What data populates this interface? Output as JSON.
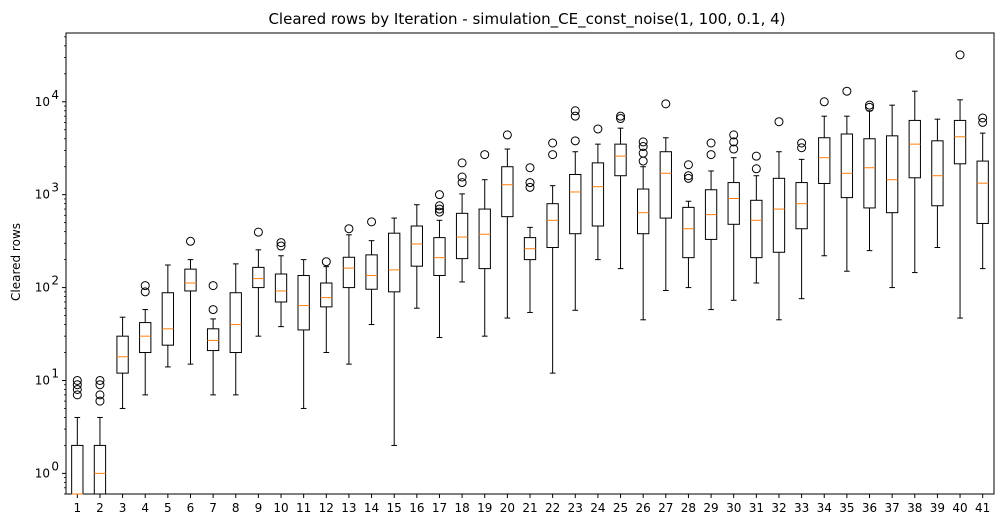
{
  "chart_data": {
    "type": "box",
    "title": "Cleared rows by Iteration - simulation_CE_const_noise(1, 100, 0.1, 4)",
    "xlabel": "",
    "ylabel": "Cleared rows",
    "yscale": "log",
    "ylim": [
      0.6,
      55000
    ],
    "yticks": [
      {
        "value": 1,
        "mantissa": "10",
        "exp": "0"
      },
      {
        "value": 10,
        "mantissa": "10",
        "exp": "1"
      },
      {
        "value": 100,
        "mantissa": "10",
        "exp": "2"
      },
      {
        "value": 1000,
        "mantissa": "10",
        "exp": "3"
      },
      {
        "value": 10000,
        "mantissa": "10",
        "exp": "4"
      }
    ],
    "grid": false,
    "colors": {
      "box": "#000000",
      "median": "#ff7f0e",
      "flier": "#000000"
    },
    "categories": [
      "1",
      "2",
      "3",
      "4",
      "5",
      "6",
      "7",
      "8",
      "9",
      "10",
      "11",
      "12",
      "13",
      "14",
      "15",
      "16",
      "17",
      "18",
      "19",
      "20",
      "21",
      "22",
      "23",
      "24",
      "25",
      "26",
      "27",
      "28",
      "29",
      "30",
      "31",
      "32",
      "33",
      "34",
      "35",
      "36",
      "37",
      "38",
      "39",
      "40",
      "41"
    ],
    "boxes": [
      {
        "label": "1",
        "min": 0.6,
        "q1": 0.6,
        "median": 0.6,
        "q3": 2,
        "max": 4,
        "outliers": [
          7,
          8,
          9,
          10
        ]
      },
      {
        "label": "2",
        "min": 0.6,
        "q1": 0.6,
        "median": 1,
        "q3": 2,
        "max": 4,
        "outliers": [
          6,
          7,
          9,
          10
        ]
      },
      {
        "label": "3",
        "min": 5,
        "q1": 12,
        "median": 18,
        "q3": 30,
        "max": 48,
        "outliers": []
      },
      {
        "label": "4",
        "min": 7,
        "q1": 20,
        "median": 30,
        "q3": 42,
        "max": 58,
        "outliers": [
          90,
          105
        ]
      },
      {
        "label": "5",
        "min": 14,
        "q1": 24,
        "median": 36,
        "q3": 88,
        "max": 175,
        "outliers": []
      },
      {
        "label": "6",
        "min": 15,
        "q1": 92,
        "median": 112,
        "q3": 158,
        "max": 200,
        "outliers": [
          315
        ]
      },
      {
        "label": "7",
        "min": 7,
        "q1": 21,
        "median": 27,
        "q3": 36,
        "max": 46,
        "outliers": [
          58,
          105
        ]
      },
      {
        "label": "8",
        "min": 7,
        "q1": 20,
        "median": 40,
        "q3": 88,
        "max": 180,
        "outliers": []
      },
      {
        "label": "9",
        "min": 30,
        "q1": 100,
        "median": 125,
        "q3": 165,
        "max": 255,
        "outliers": [
          395
        ]
      },
      {
        "label": "10",
        "min": 38,
        "q1": 70,
        "median": 92,
        "q3": 140,
        "max": 220,
        "outliers": [
          280,
          305
        ]
      },
      {
        "label": "11",
        "min": 5,
        "q1": 35,
        "median": 64,
        "q3": 135,
        "max": 200,
        "outliers": []
      },
      {
        "label": "12",
        "min": 20,
        "q1": 62,
        "median": 78,
        "q3": 112,
        "max": 168,
        "outliers": [
          190
        ]
      },
      {
        "label": "13",
        "min": 15,
        "q1": 100,
        "median": 162,
        "q3": 212,
        "max": 370,
        "outliers": [
          430
        ]
      },
      {
        "label": "14",
        "min": 40,
        "q1": 96,
        "median": 135,
        "q3": 225,
        "max": 320,
        "outliers": [
          510
        ]
      },
      {
        "label": "15",
        "min": 2,
        "q1": 90,
        "median": 155,
        "q3": 385,
        "max": 560,
        "outliers": []
      },
      {
        "label": "16",
        "min": 60,
        "q1": 170,
        "median": 295,
        "q3": 460,
        "max": 780,
        "outliers": []
      },
      {
        "label": "17",
        "min": 29,
        "q1": 135,
        "median": 210,
        "q3": 345,
        "max": 530,
        "outliers": [
          650,
          700,
          760,
          1000
        ]
      },
      {
        "label": "18",
        "min": 115,
        "q1": 205,
        "median": 350,
        "q3": 630,
        "max": 1020,
        "outliers": [
          1350,
          1550,
          2200
        ]
      },
      {
        "label": "19",
        "min": 30,
        "q1": 160,
        "median": 375,
        "q3": 700,
        "max": 1450,
        "outliers": [
          2700
        ]
      },
      {
        "label": "20",
        "min": 47,
        "q1": 580,
        "median": 1280,
        "q3": 2000,
        "max": 3100,
        "outliers": [
          4400
        ]
      },
      {
        "label": "21",
        "min": 54,
        "q1": 200,
        "median": 262,
        "q3": 345,
        "max": 445,
        "outliers": [
          1200,
          1350,
          1950
        ]
      },
      {
        "label": "22",
        "min": 12,
        "q1": 270,
        "median": 530,
        "q3": 800,
        "max": 1250,
        "outliers": [
          2700,
          3600
        ]
      },
      {
        "label": "23",
        "min": 57,
        "q1": 380,
        "median": 1070,
        "q3": 1650,
        "max": 2900,
        "outliers": [
          3800,
          7000,
          8000
        ]
      },
      {
        "label": "24",
        "min": 200,
        "q1": 460,
        "median": 1220,
        "q3": 2200,
        "max": 3500,
        "outliers": [
          5100
        ]
      },
      {
        "label": "25",
        "min": 160,
        "q1": 1600,
        "median": 2600,
        "q3": 3500,
        "max": 5200,
        "outliers": [
          6600,
          7000
        ]
      },
      {
        "label": "26",
        "min": 45,
        "q1": 380,
        "median": 640,
        "q3": 1150,
        "max": 2000,
        "outliers": [
          2300,
          2800,
          3300,
          3700
        ]
      },
      {
        "label": "27",
        "min": 93,
        "q1": 560,
        "median": 1700,
        "q3": 2900,
        "max": 4100,
        "outliers": [
          9500
        ]
      },
      {
        "label": "28",
        "min": 100,
        "q1": 210,
        "median": 430,
        "q3": 730,
        "max": 850,
        "outliers": [
          1500,
          1600,
          2100
        ]
      },
      {
        "label": "29",
        "min": 58,
        "q1": 330,
        "median": 610,
        "q3": 1130,
        "max": 1800,
        "outliers": [
          2700,
          3600
        ]
      },
      {
        "label": "30",
        "min": 73,
        "q1": 480,
        "median": 910,
        "q3": 1350,
        "max": 2500,
        "outliers": [
          3100,
          3700,
          4400
        ]
      },
      {
        "label": "31",
        "min": 112,
        "q1": 210,
        "median": 530,
        "q3": 870,
        "max": 1600,
        "outliers": [
          1900,
          2600
        ]
      },
      {
        "label": "32",
        "min": 45,
        "q1": 240,
        "median": 700,
        "q3": 1500,
        "max": 2900,
        "outliers": [
          6100
        ]
      },
      {
        "label": "33",
        "min": 76,
        "q1": 430,
        "median": 800,
        "q3": 1350,
        "max": 2400,
        "outliers": [
          3200,
          3600
        ]
      },
      {
        "label": "34",
        "min": 220,
        "q1": 1320,
        "median": 2500,
        "q3": 4100,
        "max": 7000,
        "outliers": [
          10000
        ]
      },
      {
        "label": "35",
        "min": 150,
        "q1": 930,
        "median": 1700,
        "q3": 4500,
        "max": 7000,
        "outliers": [
          13000
        ]
      },
      {
        "label": "36",
        "min": 250,
        "q1": 720,
        "median": 1950,
        "q3": 4000,
        "max": 8000,
        "outliers": [
          8700,
          9200
        ]
      },
      {
        "label": "37",
        "min": 100,
        "q1": 640,
        "median": 1450,
        "q3": 4300,
        "max": 9200,
        "outliers": []
      },
      {
        "label": "38",
        "min": 145,
        "q1": 1520,
        "median": 3500,
        "q3": 6300,
        "max": 13000,
        "outliers": []
      },
      {
        "label": "39",
        "min": 270,
        "q1": 760,
        "median": 1600,
        "q3": 3800,
        "max": 6500,
        "outliers": []
      },
      {
        "label": "40",
        "min": 47,
        "q1": 2150,
        "median": 4200,
        "q3": 6300,
        "max": 10500,
        "outliers": [
          32000
        ]
      },
      {
        "label": "41",
        "min": 160,
        "q1": 490,
        "median": 1330,
        "q3": 2300,
        "max": 4600,
        "outliers": [
          6000,
          6700
        ]
      }
    ]
  }
}
